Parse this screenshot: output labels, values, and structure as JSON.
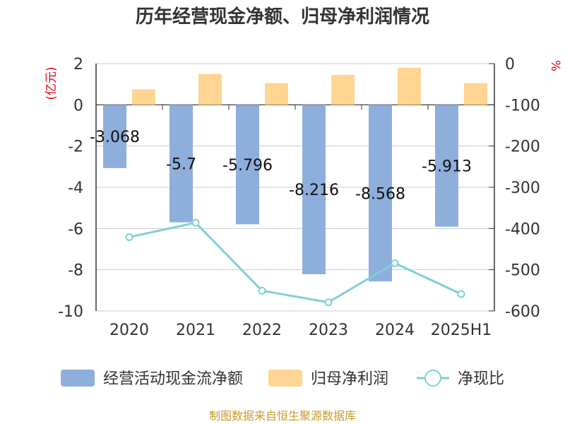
{
  "title": "历年经营现金净额、归母净利润情况",
  "source": "制图数据来自恒生聚源数据库",
  "chart_data": {
    "type": "bar",
    "categories": [
      "2020",
      "2021",
      "2022",
      "2023",
      "2024",
      "2025H1"
    ],
    "series": [
      {
        "name": "经营活动现金流净额",
        "type": "bar",
        "axis": "left",
        "values": [
          -3.068,
          -5.7,
          -5.796,
          -8.216,
          -8.568,
          -5.913
        ],
        "color": "#8eaedc"
      },
      {
        "name": "归母净利润",
        "type": "bar",
        "axis": "left",
        "values": [
          0.75,
          1.5,
          1.05,
          1.45,
          1.8,
          1.05
        ],
        "color": "#ffd591"
      },
      {
        "name": "净现比",
        "type": "line",
        "axis": "right",
        "values": [
          -421,
          -386,
          -551,
          -579,
          -484,
          -559
        ],
        "color": "#7fd0d4"
      }
    ],
    "data_labels": [
      "-3.068",
      "-5.7",
      "-5.796",
      "-8.216",
      "-8.568",
      "-5.913"
    ],
    "y_left": {
      "unit": "(亿元)",
      "ylim": [
        -10,
        2
      ],
      "ticks": [
        2,
        0,
        -2,
        -4,
        -6,
        -8,
        -10
      ]
    },
    "y_right": {
      "unit": "%",
      "ylim": [
        -600,
        0
      ],
      "ticks": [
        0,
        -100,
        -200,
        -300,
        -400,
        -500,
        -600
      ]
    },
    "grid": true,
    "legend_position": "bottom"
  }
}
